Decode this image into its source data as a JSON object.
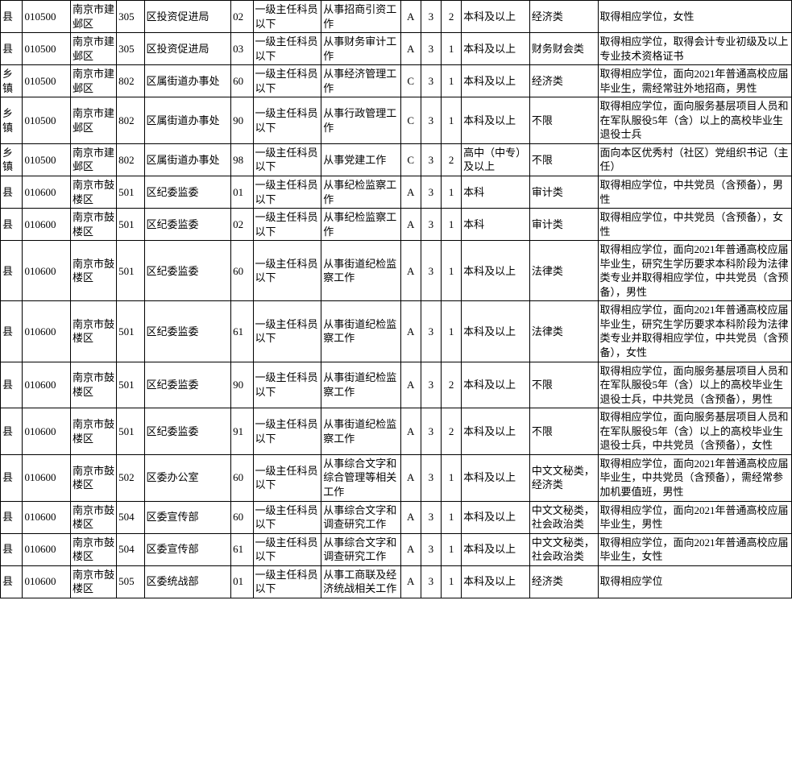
{
  "rows": [
    [
      "县",
      "010500",
      "南京市建邺区",
      "305",
      "区投资促进局",
      "02",
      "一级主任科员以下",
      "从事招商引资工作",
      "A",
      "3",
      "2",
      "本科及以上",
      "经济类",
      "取得相应学位，女性"
    ],
    [
      "县",
      "010500",
      "南京市建邺区",
      "305",
      "区投资促进局",
      "03",
      "一级主任科员以下",
      "从事财务审计工作",
      "A",
      "3",
      "1",
      "本科及以上",
      "财务财会类",
      "取得相应学位，取得会计专业初级及以上专业技术资格证书"
    ],
    [
      "乡镇",
      "010500",
      "南京市建邺区",
      "802",
      "区属街道办事处",
      "60",
      "一级主任科员以下",
      "从事经济管理工作",
      "C",
      "3",
      "1",
      "本科及以上",
      "经济类",
      "取得相应学位，面向2021年普通高校应届毕业生，需经常驻外地招商，男性"
    ],
    [
      "乡镇",
      "010500",
      "南京市建邺区",
      "802",
      "区属街道办事处",
      "90",
      "一级主任科员以下",
      "从事行政管理工作",
      "C",
      "3",
      "1",
      "本科及以上",
      "不限",
      "取得相应学位，面向服务基层项目人员和在军队服役5年（含）以上的高校毕业生退役士兵"
    ],
    [
      "乡镇",
      "010500",
      "南京市建邺区",
      "802",
      "区属街道办事处",
      "98",
      "一级主任科员以下",
      "从事党建工作",
      "C",
      "3",
      "2",
      "高中（中专）及以上",
      "不限",
      "面向本区优秀村（社区）党组织书记（主任）"
    ],
    [
      "县",
      "010600",
      "南京市鼓楼区",
      "501",
      "区纪委监委",
      "01",
      "一级主任科员以下",
      "从事纪检监察工作",
      "A",
      "3",
      "1",
      "本科",
      "审计类",
      "取得相应学位，中共党员（含预备），男性"
    ],
    [
      "县",
      "010600",
      "南京市鼓楼区",
      "501",
      "区纪委监委",
      "02",
      "一级主任科员以下",
      "从事纪检监察工作",
      "A",
      "3",
      "1",
      "本科",
      "审计类",
      "取得相应学位，中共党员（含预备），女性"
    ],
    [
      "县",
      "010600",
      "南京市鼓楼区",
      "501",
      "区纪委监委",
      "60",
      "一级主任科员以下",
      "从事街道纪检监察工作",
      "A",
      "3",
      "1",
      "本科及以上",
      "法律类",
      "取得相应学位，面向2021年普通高校应届毕业生，研究生学历要求本科阶段为法律类专业并取得相应学位，中共党员（含预备），男性"
    ],
    [
      "县",
      "010600",
      "南京市鼓楼区",
      "501",
      "区纪委监委",
      "61",
      "一级主任科员以下",
      "从事街道纪检监察工作",
      "A",
      "3",
      "1",
      "本科及以上",
      "法律类",
      "取得相应学位，面向2021年普通高校应届毕业生，研究生学历要求本科阶段为法律类专业并取得相应学位，中共党员（含预备），女性"
    ],
    [
      "县",
      "010600",
      "南京市鼓楼区",
      "501",
      "区纪委监委",
      "90",
      "一级主任科员以下",
      "从事街道纪检监察工作",
      "A",
      "3",
      "2",
      "本科及以上",
      "不限",
      "取得相应学位，面向服务基层项目人员和在军队服役5年（含）以上的高校毕业生退役士兵，中共党员（含预备），男性"
    ],
    [
      "县",
      "010600",
      "南京市鼓楼区",
      "501",
      "区纪委监委",
      "91",
      "一级主任科员以下",
      "从事街道纪检监察工作",
      "A",
      "3",
      "2",
      "本科及以上",
      "不限",
      "取得相应学位，面向服务基层项目人员和在军队服役5年（含）以上的高校毕业生退役士兵，中共党员（含预备），女性"
    ],
    [
      "县",
      "010600",
      "南京市鼓楼区",
      "502",
      "区委办公室",
      "60",
      "一级主任科员以下",
      "从事综合文字和综合管理等相关工作",
      "A",
      "3",
      "1",
      "本科及以上",
      "中文文秘类，经济类",
      "取得相应学位，面向2021年普通高校应届毕业生，中共党员（含预备），需经常参加机要值班，男性"
    ],
    [
      "县",
      "010600",
      "南京市鼓楼区",
      "504",
      "区委宣传部",
      "60",
      "一级主任科员以下",
      "从事综合文字和调查研究工作",
      "A",
      "3",
      "1",
      "本科及以上",
      "中文文秘类，社会政治类",
      "取得相应学位，面向2021年普通高校应届毕业生，男性"
    ],
    [
      "县",
      "010600",
      "南京市鼓楼区",
      "504",
      "区委宣传部",
      "61",
      "一级主任科员以下",
      "从事综合文字和调查研究工作",
      "A",
      "3",
      "1",
      "本科及以上",
      "中文文秘类，社会政治类",
      "取得相应学位，面向2021年普通高校应届毕业生，女性"
    ],
    [
      "县",
      "010600",
      "南京市鼓楼区",
      "505",
      "区委统战部",
      "01",
      "一级主任科员以下",
      "从事工商联及经济统战相关工作",
      "A",
      "3",
      "1",
      "本科及以上",
      "经济类",
      "取得相应学位"
    ]
  ]
}
